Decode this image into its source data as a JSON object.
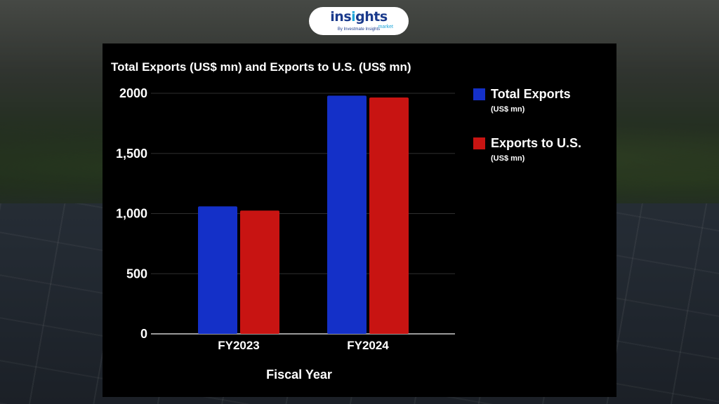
{
  "logo": {
    "word_main": "ins",
    "word_accent": "i",
    "word_rest": "ghts",
    "market": "market",
    "byline": "By Investmate Insights"
  },
  "colors": {
    "total_exports": "#1430c8",
    "exports_to_us": "#c81412",
    "panel_bg": "#000000",
    "text": "#ffffff"
  },
  "chart_data": {
    "type": "bar",
    "title": "Total Exports (US$ mn) and Exports to U.S. (US$ mn)",
    "xlabel": "Fiscal Year",
    "ylabel": "",
    "categories": [
      "FY2023",
      "FY2024"
    ],
    "series": [
      {
        "name": "Total Exports",
        "unit": "(US$ mn)",
        "values": [
          1060,
          1980
        ]
      },
      {
        "name": "Exports to U.S.",
        "unit": "(US$ mn)",
        "values": [
          1025,
          1965
        ]
      }
    ],
    "ylim": [
      0,
      2000
    ],
    "yticks": [
      0,
      500,
      1000,
      1500,
      2000
    ],
    "ytick_labels": [
      "0",
      "500",
      "1,000",
      "1,500",
      "2000"
    ],
    "grid": true,
    "legend_position": "right"
  }
}
